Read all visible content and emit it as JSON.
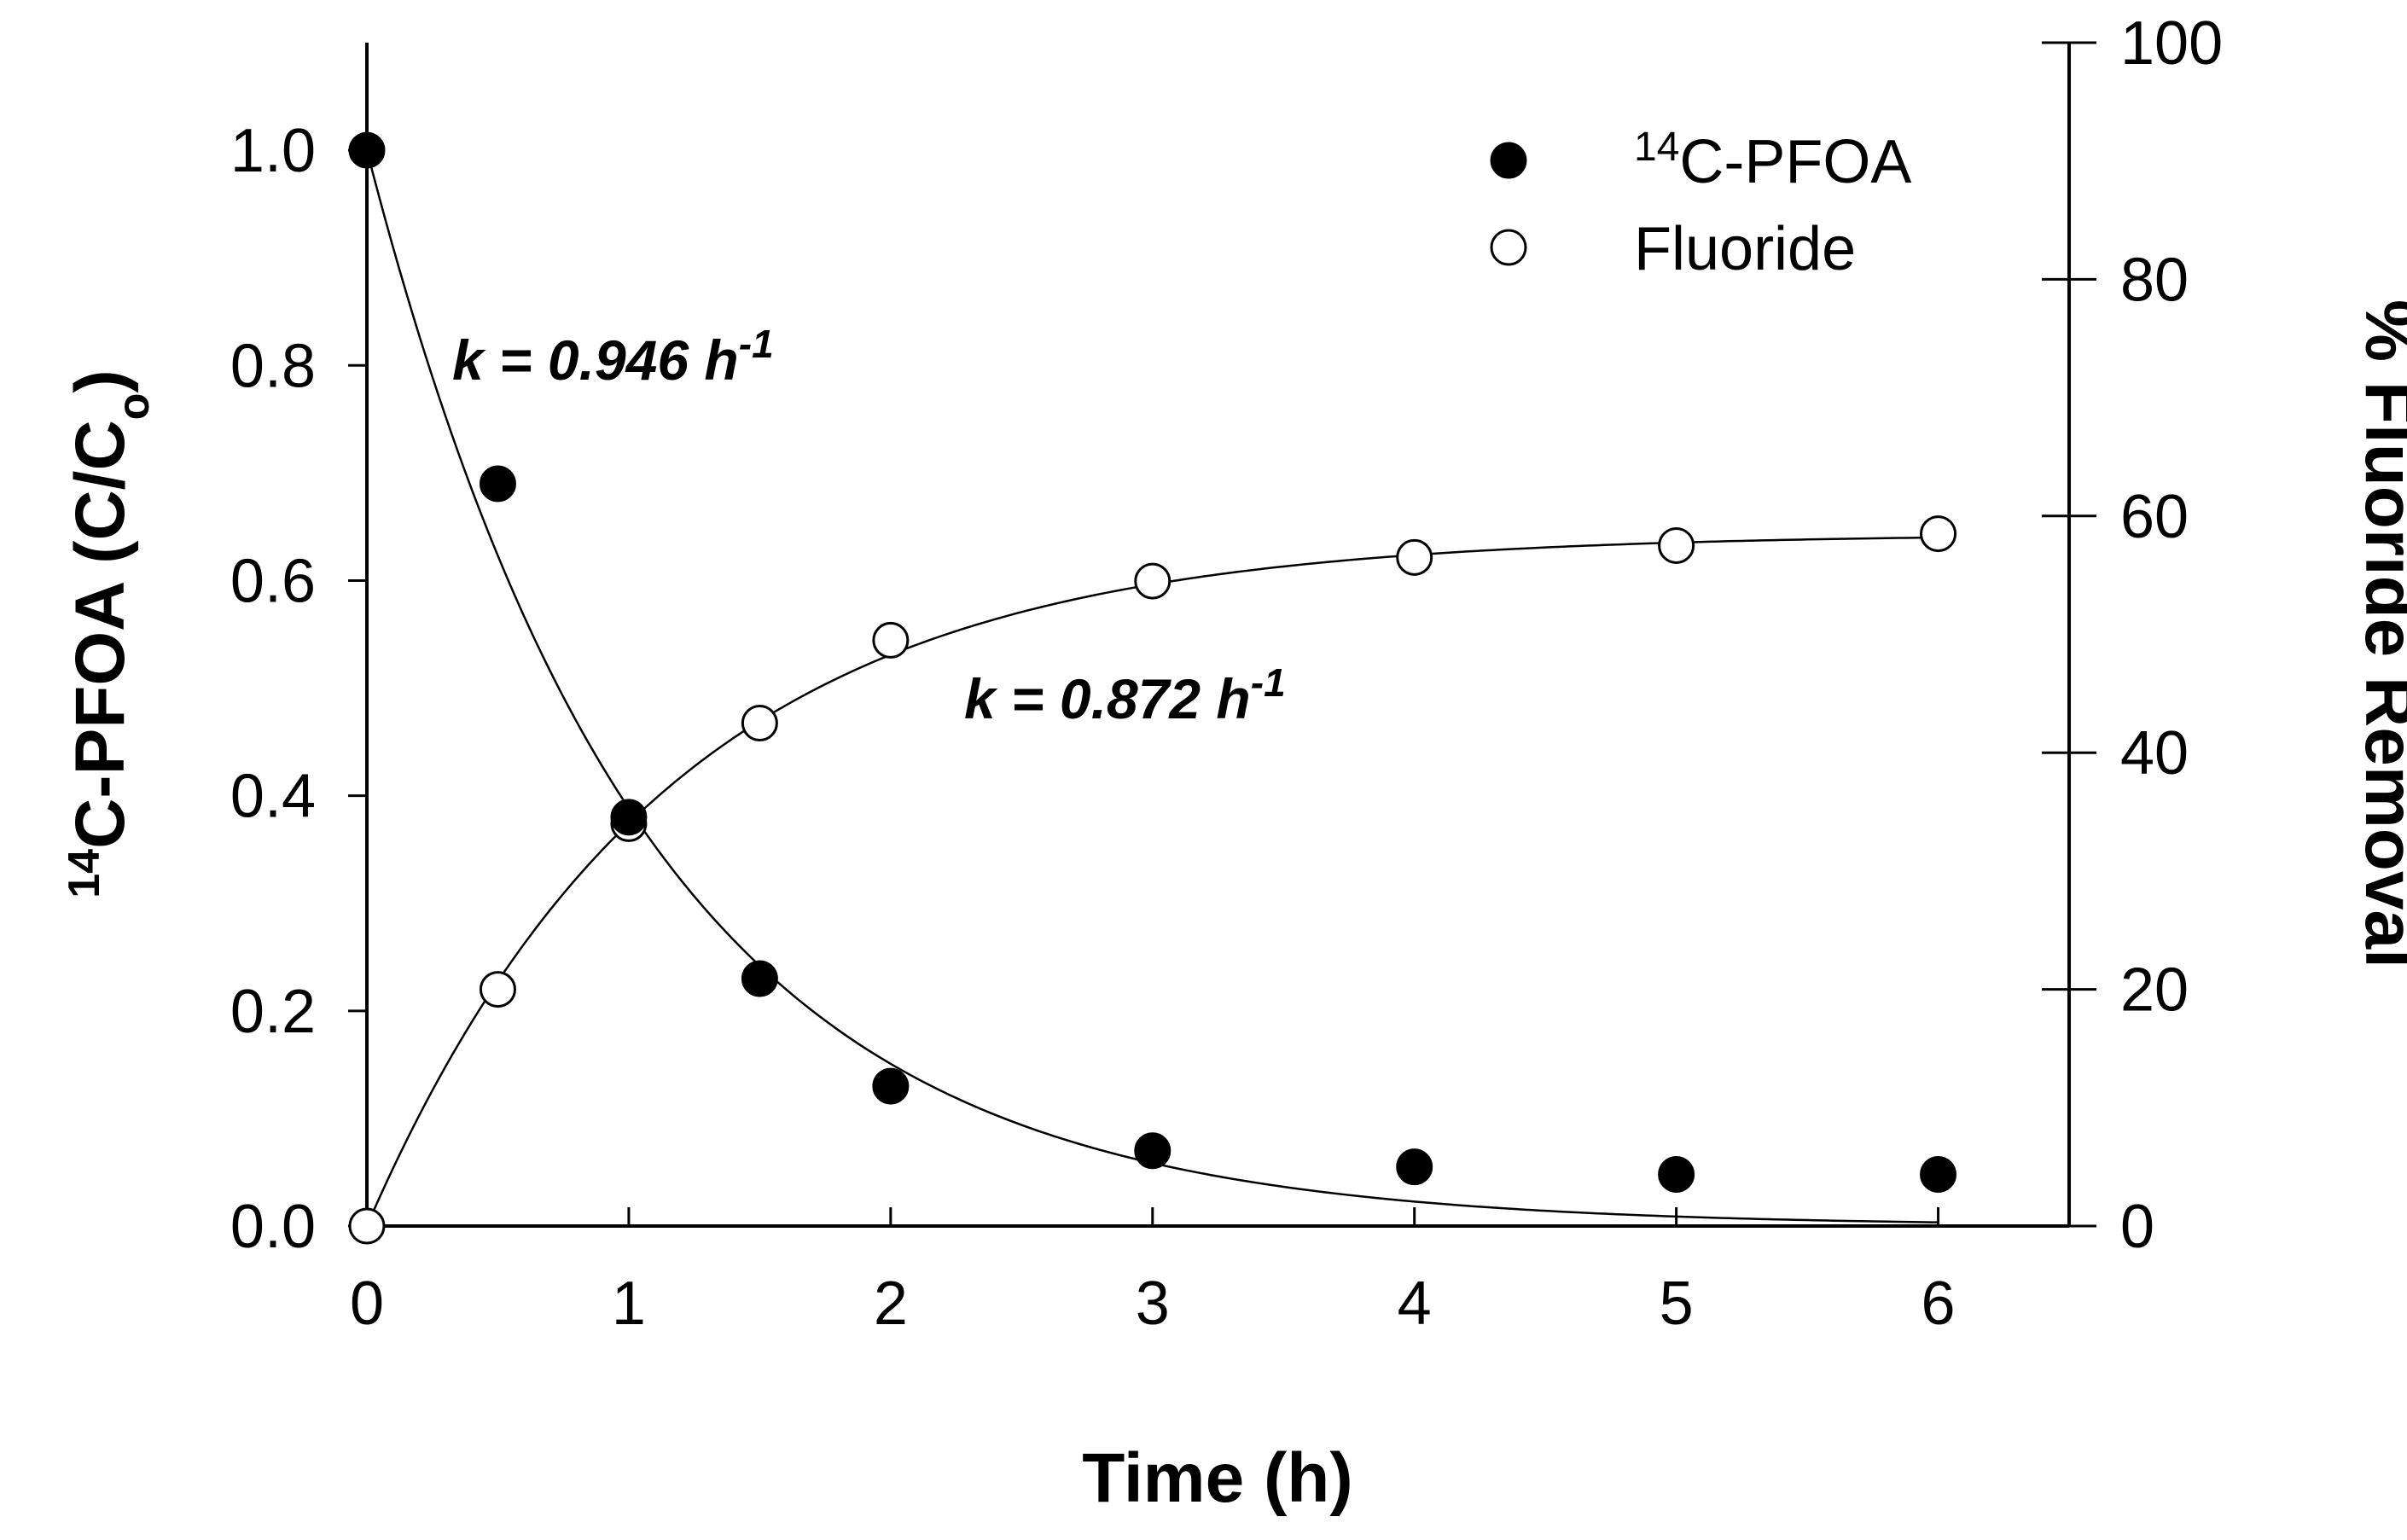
{
  "chart_data": {
    "type": "scatter",
    "x": [
      0,
      0.5,
      1,
      1.5,
      2,
      3,
      4,
      5,
      6
    ],
    "xlabel": "Time (h)",
    "xlim": [
      0,
      6.5
    ],
    "xticks": [
      0,
      1,
      2,
      3,
      4,
      5,
      6
    ],
    "y_left": {
      "label": {
        "sup": "14",
        "main": "C-PFOA (C/C",
        "sub": "o",
        "end": ")"
      },
      "ylim": [
        0,
        1.1
      ],
      "ticks": [
        "0.0",
        "0.2",
        "0.4",
        "0.6",
        "0.8",
        "1.0"
      ]
    },
    "y_right": {
      "label": "% Fluoride Removal",
      "ylim": [
        0,
        100
      ],
      "ticks": [
        "0",
        "20",
        "40",
        "60",
        "80",
        "100"
      ]
    },
    "series": [
      {
        "name_sup": "14",
        "name": "C-PFOA",
        "marker": "filled-circle",
        "axis": "left",
        "values": [
          1.0,
          0.69,
          0.38,
          0.23,
          0.13,
          0.07,
          0.055,
          0.048,
          0.048
        ],
        "fit": {
          "model": "exp-decay",
          "k": 0.946
        }
      },
      {
        "name": "Fluoride",
        "marker": "open-circle",
        "axis": "right",
        "values": [
          0,
          20,
          34,
          42.5,
          49.5,
          54.5,
          56.5,
          57.5,
          58.5
        ],
        "fit": {
          "model": "exp-rise",
          "k": 0.872,
          "max": 58.5
        }
      }
    ],
    "annotations": [
      {
        "label": "k = 0.946 h",
        "sup": "-1"
      },
      {
        "label": "k = 0.872 h",
        "sup": "-1"
      }
    ],
    "legend_position": "top-right",
    "grid": false
  }
}
